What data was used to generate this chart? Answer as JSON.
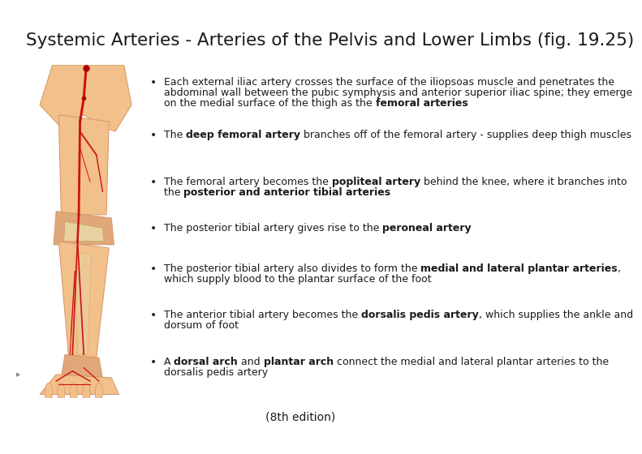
{
  "title": "Systemic Arteries - Arteries of the Pelvis and Lower Limbs (fig. 19.25)",
  "title_fontsize": 15.5,
  "background_color": "#ffffff",
  "footer_text": "(8th edition)",
  "footer_fontsize": 10,
  "text_fontsize": 9.0,
  "text_color": "#1a1a1a",
  "bullet_color": "#222222",
  "bullet_items": [
    [
      [
        "Each external iliac artery crosses the surface of the iliopsoas muscle and penetrates the\nabdominal wall between the pubic symphysis and anterior superior iliac spine; they emerge\non the medial surface of the thigh as the ",
        false
      ],
      [
        "femoral arteries",
        true
      ]
    ],
    [
      [
        "The ",
        false
      ],
      [
        "deep femoral artery",
        true
      ],
      [
        " branches off of the femoral artery - supplies deep thigh muscles",
        false
      ]
    ],
    [
      [
        "The femoral artery becomes the ",
        false
      ],
      [
        "popliteal artery",
        true
      ],
      [
        " behind the knee, where it branches into\nthe ",
        false
      ],
      [
        "posterior and anterior tibial arteries",
        true
      ]
    ],
    [
      [
        "The posterior tibial artery gives rise to the ",
        false
      ],
      [
        "peroneal artery",
        true
      ]
    ],
    [
      [
        "The posterior tibial artery also divides to form the ",
        false
      ],
      [
        "medial and lateral plantar arteries",
        true
      ],
      [
        ",\nwhich supply blood to the plantar surface of the foot",
        false
      ]
    ],
    [
      [
        "The anterior tibial artery becomes the ",
        false
      ],
      [
        "dorsalis pedis artery",
        true
      ],
      [
        ", which supplies the ankle and\ndorsum of foot",
        false
      ]
    ],
    [
      [
        "A ",
        false
      ],
      [
        "dorsal arch",
        true
      ],
      [
        " and ",
        false
      ],
      [
        "plantar arch",
        true
      ],
      [
        " connect the medial and lateral plantar arteries to the\ndorsalis pedis artery",
        false
      ]
    ]
  ],
  "leg_skin_color": "#f2c08a",
  "leg_skin_dark": "#d4956a",
  "leg_bone_color": "#e8d0a0",
  "artery_color": "#cc1111",
  "artery_color2": "#aa0000"
}
